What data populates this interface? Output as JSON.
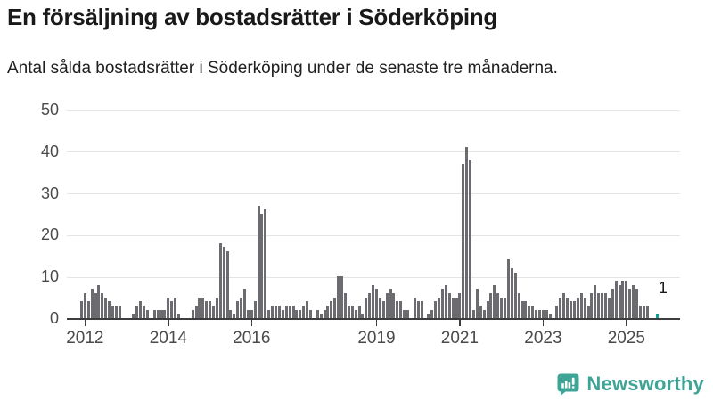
{
  "title": "En försäljning av bostadsrätter i Söderköping",
  "subtitle": "Antal sålda bostadsrätter i Söderköping under de senaste tre månaderna.",
  "annotation": {
    "last_value_label": "1"
  },
  "logo": {
    "text": "Newsworthy"
  },
  "colors": {
    "bar": "#6b6b70",
    "highlight": "#0aa396",
    "axis": "#3d3d40",
    "grid": "#e4e4e4",
    "tick_text": "#4a4a4a",
    "brand_teal": "#3ea496",
    "title_text": "#191919"
  },
  "chart_data": {
    "type": "bar",
    "title": "En försäljning av bostadsrätter i Söderköping",
    "subtitle": "Antal sålda bostadsrätter i Söderköping under de senaste tre månaderna.",
    "start_month": "2011-12",
    "end_month": "2025-10",
    "frequency": "monthly",
    "ylim": [
      0,
      50
    ],
    "y_ticks": [
      0,
      10,
      20,
      30,
      40,
      50
    ],
    "x_tick_years": [
      2012,
      2014,
      2016,
      2019,
      2021,
      2023,
      2025
    ],
    "grid": true,
    "highlight_last": true,
    "last_label": "1",
    "values": [
      4,
      6,
      4,
      7,
      6,
      8,
      6,
      5,
      4,
      3,
      3,
      3,
      0,
      0,
      0,
      1,
      3,
      4,
      3,
      2,
      0,
      2,
      2,
      2,
      2,
      5,
      4,
      5,
      1,
      0,
      0,
      0,
      2,
      3,
      5,
      5,
      4,
      4,
      3,
      5,
      18,
      17,
      16,
      2,
      1,
      4,
      5,
      7,
      2,
      2,
      4,
      27,
      25,
      26,
      2,
      3,
      3,
      3,
      2,
      3,
      3,
      3,
      2,
      2,
      3,
      4,
      2,
      0,
      2,
      1,
      2,
      3,
      4,
      5,
      10,
      10,
      6,
      3,
      3,
      2,
      3,
      1,
      5,
      6,
      8,
      7,
      5,
      4,
      6,
      7,
      6,
      4,
      4,
      2,
      2,
      0,
      5,
      4,
      4,
      0,
      1,
      2,
      4,
      5,
      7,
      8,
      6,
      5,
      5,
      6,
      37,
      41,
      38,
      2,
      7,
      3,
      2,
      4,
      6,
      8,
      6,
      5,
      5,
      14,
      12,
      11,
      6,
      4,
      4,
      3,
      3,
      2,
      2,
      2,
      2,
      1,
      0,
      3,
      5,
      6,
      5,
      4,
      4,
      5,
      6,
      5,
      3,
      6,
      8,
      6,
      6,
      6,
      5,
      7,
      9,
      8,
      9,
      9,
      7,
      8,
      7,
      3,
      3,
      3,
      0,
      0,
      1
    ]
  }
}
